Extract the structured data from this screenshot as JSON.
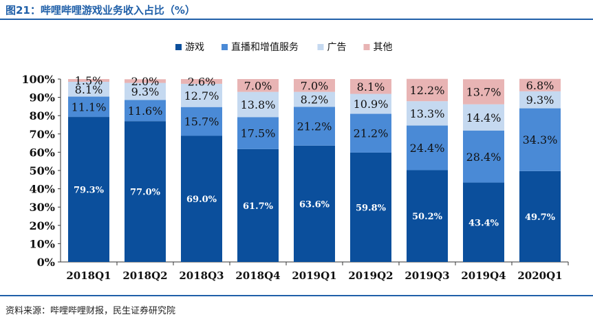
{
  "header": {
    "title": "图21：哔哩哔哩游戏业务收入占比（%）"
  },
  "footer": {
    "source": "资料来源：哔哩哔哩财报，民生证券研究院"
  },
  "chart_data": {
    "type": "bar",
    "stacked": true,
    "title": "图21：哔哩哔哩游戏业务收入占比（%）",
    "categories": [
      "2018Q1",
      "2018Q2",
      "2018Q3",
      "2018Q4",
      "2019Q1",
      "2019Q2",
      "2019Q3",
      "2019Q4",
      "2020Q1"
    ],
    "series": [
      {
        "name": "游戏",
        "color": "#0b4f9c",
        "values": [
          79.3,
          77.0,
          69.0,
          61.7,
          63.6,
          59.8,
          50.2,
          43.4,
          49.7
        ],
        "labels": [
          "79.3%",
          "77.0%",
          "69.0%",
          "61.7%",
          "63.6%",
          "59.8%",
          "50.2%",
          "43.4%",
          "49.7%"
        ]
      },
      {
        "name": "直播和增值服务",
        "color": "#4a8ad6",
        "values": [
          11.1,
          11.6,
          15.7,
          17.5,
          21.2,
          21.2,
          24.4,
          28.4,
          34.3
        ],
        "labels": [
          "11.1%",
          "11.6%",
          "15.7%",
          "17.5%",
          "21.2%",
          "21.2%",
          "24.4%",
          "28.4%",
          "34.3%"
        ]
      },
      {
        "name": "广告",
        "color": "#c5d9f0",
        "values": [
          8.1,
          9.3,
          12.7,
          13.8,
          8.2,
          10.9,
          13.3,
          14.4,
          9.3
        ],
        "labels": [
          "8.1%",
          "9.3%",
          "12.7%",
          "13.8%",
          "8.2%",
          "10.9%",
          "13.3%",
          "14.4%",
          "9.3%"
        ]
      },
      {
        "name": "其他",
        "color": "#e8b4b4",
        "values": [
          1.5,
          2.0,
          2.6,
          7.0,
          7.0,
          8.1,
          12.2,
          13.7,
          6.8
        ],
        "labels": [
          "1.5%",
          "2.0%",
          "2.6%",
          "7.0%",
          "7.0%",
          "8.1%",
          "12.2%",
          "13.7%",
          "6.8%"
        ]
      }
    ],
    "yticks": [
      "0%",
      "10%",
      "20%",
      "30%",
      "40%",
      "50%",
      "60%",
      "70%",
      "80%",
      "90%",
      "100%"
    ],
    "ylim": [
      0,
      100
    ],
    "legend_position": "top",
    "grid": false
  }
}
